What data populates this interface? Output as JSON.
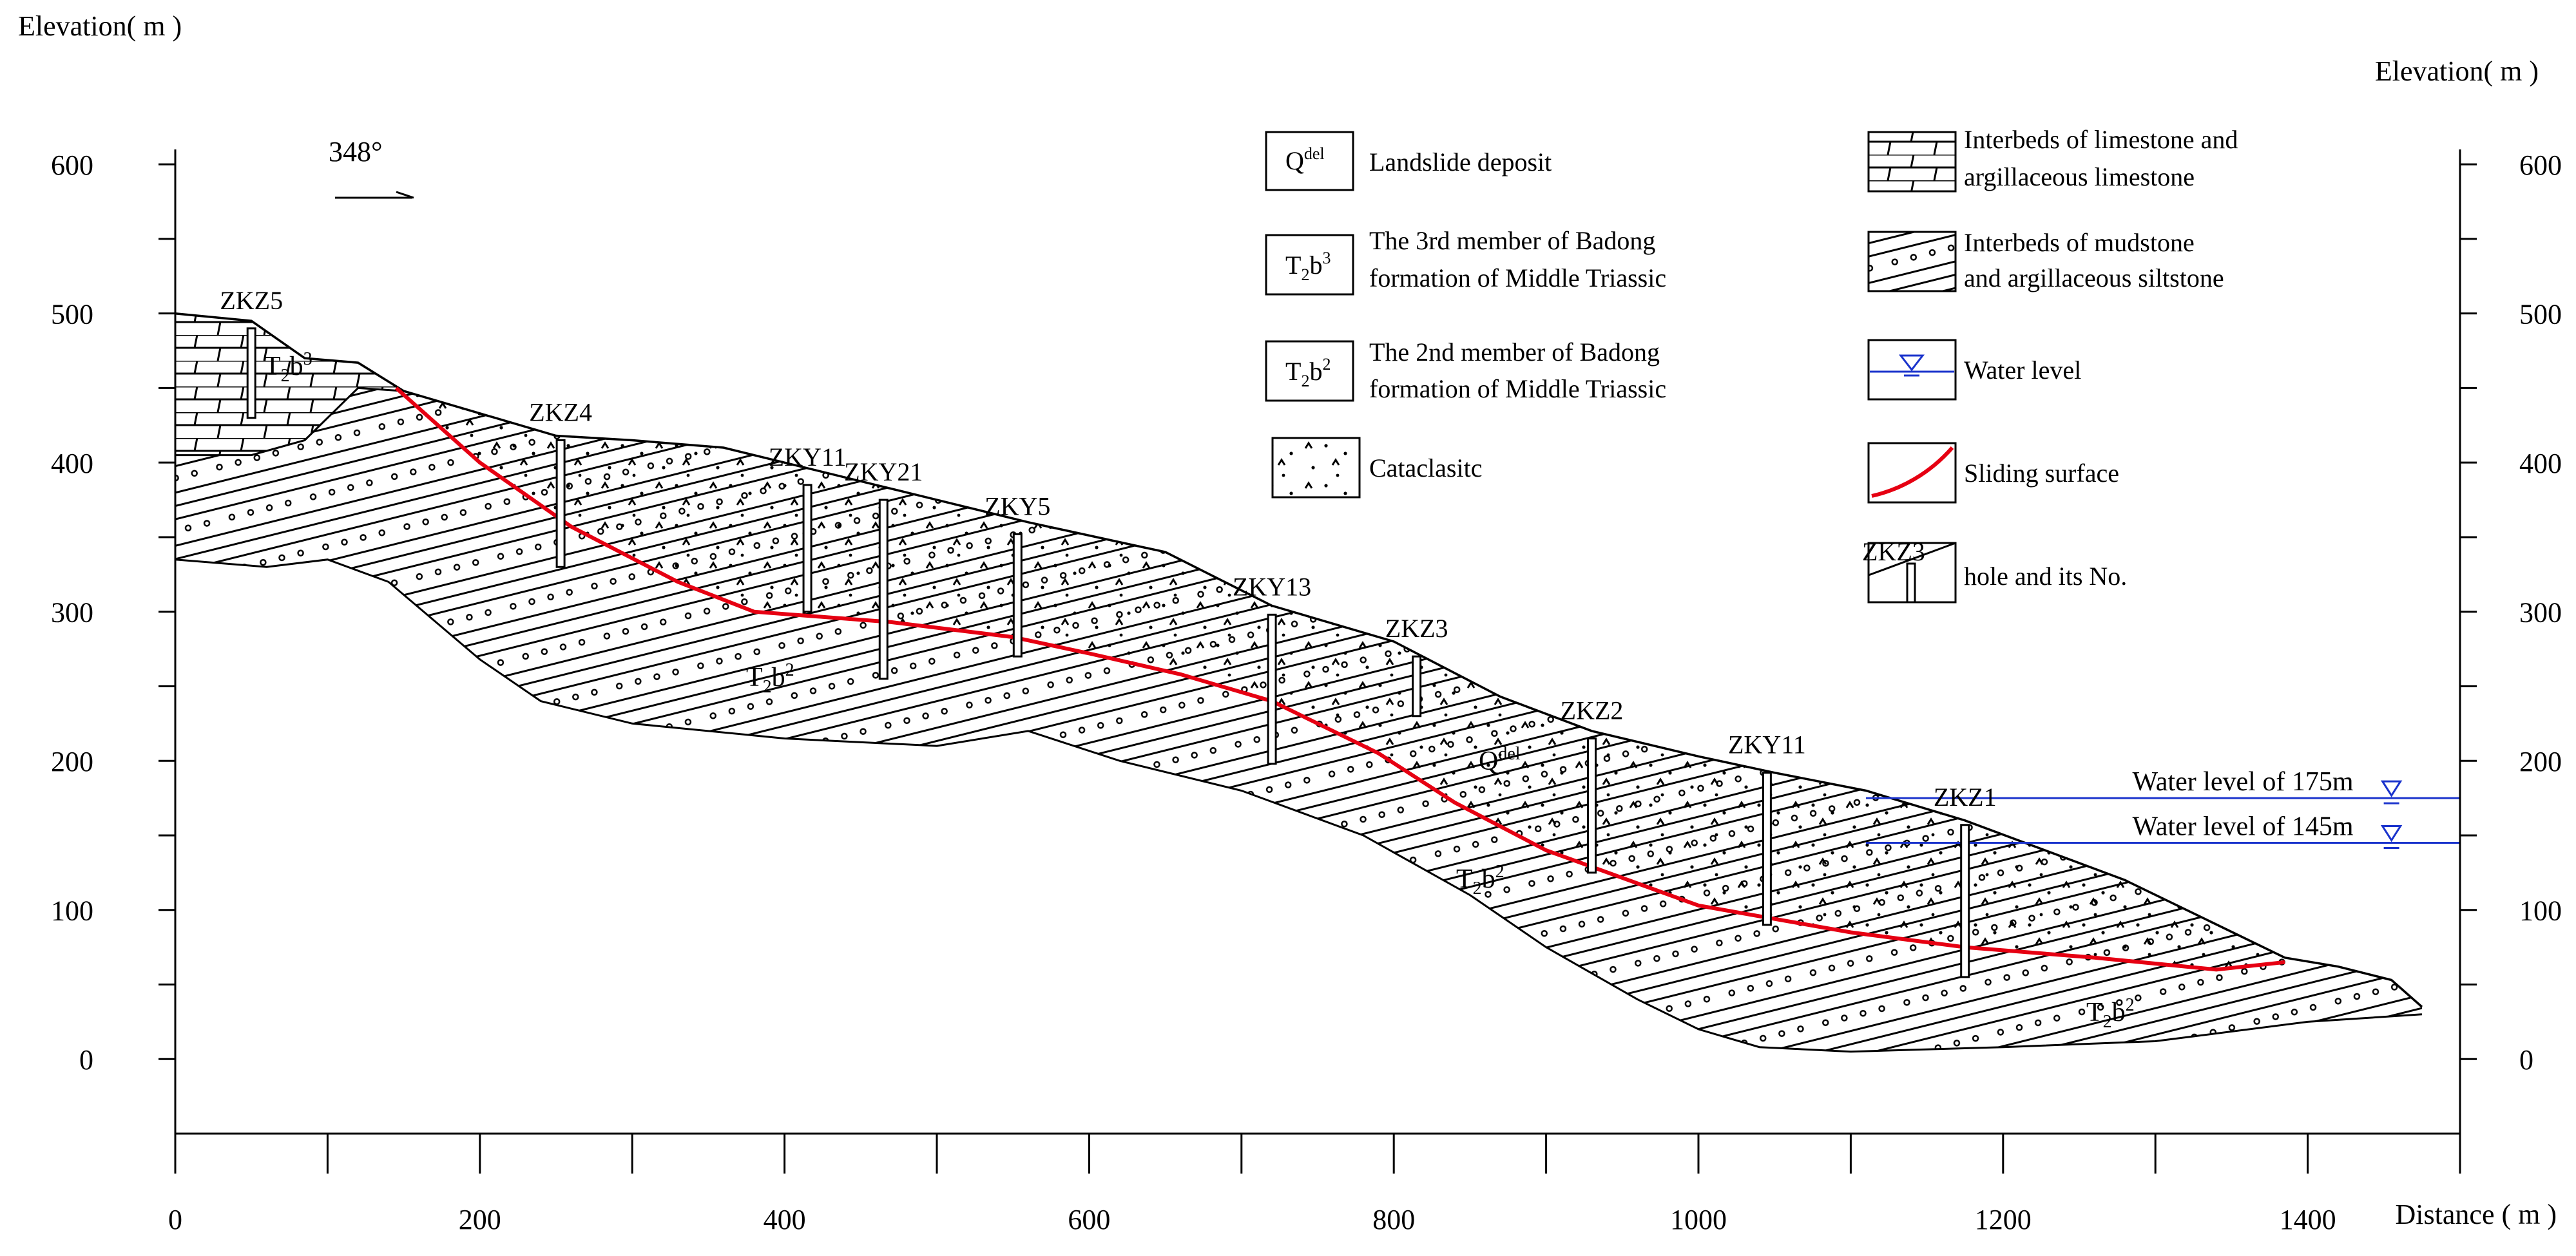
{
  "axes": {
    "left_title": "Elevation( m )",
    "right_title": "Elevation( m )",
    "x_title": "Distance ( m )",
    "y_ticks": [
      "0",
      "100",
      "200",
      "300",
      "400",
      "500",
      "600"
    ],
    "x_ticks": [
      "0",
      "200",
      "400",
      "600",
      "800",
      "1000",
      "1200",
      "1400"
    ],
    "x_range": [
      0,
      1500
    ],
    "y_range": [
      -50,
      610
    ]
  },
  "orientation": {
    "label": "348°"
  },
  "boreholes": [
    {
      "id": "ZKZ5",
      "label": "ZKZ5",
      "x": 50,
      "top": 490,
      "bottom": 430
    },
    {
      "id": "ZKZ4",
      "label": "ZKZ4",
      "x": 253,
      "top": 415,
      "bottom": 330
    },
    {
      "id": "ZKY11a",
      "label": "ZKY11",
      "x": 415,
      "top": 385,
      "bottom": 300
    },
    {
      "id": "ZKY21",
      "label": "ZKY21",
      "x": 465,
      "top": 375,
      "bottom": 255
    },
    {
      "id": "ZKY5",
      "label": "ZKY5",
      "x": 553,
      "top": 352,
      "bottom": 270
    },
    {
      "id": "ZKY13",
      "label": "ZKY13",
      "x": 720,
      "top": 298,
      "bottom": 198
    },
    {
      "id": "ZKZ3",
      "label": "ZKZ3",
      "x": 815,
      "top": 270,
      "bottom": 230
    },
    {
      "id": "ZKZ2",
      "label": "ZKZ2",
      "x": 930,
      "top": 215,
      "bottom": 125
    },
    {
      "id": "ZKY11b",
      "label": "ZKY11",
      "x": 1045,
      "top": 192,
      "bottom": 90
    },
    {
      "id": "ZKZ1",
      "label": "ZKZ1",
      "x": 1175,
      "top": 157,
      "bottom": 55
    }
  ],
  "formation_labels": {
    "t2b3_top": "T2b3",
    "t2b2_mid": "T2b2",
    "qdel": "Qdel",
    "t2b2_lower": "T2b2",
    "t2b2_right": "T2b2"
  },
  "water_levels": [
    {
      "label": "Water level of 175m",
      "elevation": 175
    },
    {
      "label": "Water level of 145m",
      "elevation": 145
    }
  ],
  "legend": {
    "items": [
      {
        "key": "qdel",
        "symbol": "Qdel",
        "text": [
          "Landslide deposit"
        ]
      },
      {
        "key": "t2b3",
        "symbol": "T2b3",
        "text": [
          "The 3rd member of Badong",
          "formation of Middle Triassic"
        ]
      },
      {
        "key": "t2b2",
        "symbol": "T2b2",
        "text": [
          "The 2nd member of Badong",
          "formation of Middle Triassic"
        ]
      },
      {
        "key": "cataclasite",
        "symbol": "",
        "text": [
          "Cataclasitc"
        ]
      },
      {
        "key": "limestone",
        "symbol": "",
        "text": [
          "Interbeds of limestone and",
          "argillaceous limestone"
        ]
      },
      {
        "key": "mudstone",
        "symbol": "",
        "text": [
          "Interbeds of mudstone",
          "and argillaceous siltstone"
        ]
      },
      {
        "key": "water",
        "symbol": "",
        "text": [
          "Water level"
        ]
      },
      {
        "key": "sliding",
        "symbol": "",
        "text": [
          "Sliding surface"
        ]
      },
      {
        "key": "hole",
        "symbol": "ZKZ3",
        "text": [
          "hole and its No."
        ]
      }
    ]
  },
  "profiles": {
    "ground": [
      [
        0,
        500
      ],
      [
        50,
        495
      ],
      [
        85,
        470
      ],
      [
        120,
        467
      ],
      [
        150,
        448
      ],
      [
        250,
        418
      ],
      [
        300,
        415
      ],
      [
        360,
        410
      ],
      [
        460,
        385
      ],
      [
        560,
        360
      ],
      [
        650,
        340
      ],
      [
        720,
        304
      ],
      [
        800,
        280
      ],
      [
        870,
        243
      ],
      [
        930,
        220
      ],
      [
        1000,
        203
      ],
      [
        1050,
        192
      ],
      [
        1110,
        180
      ],
      [
        1175,
        160
      ],
      [
        1280,
        120
      ],
      [
        1385,
        68
      ],
      [
        1420,
        62
      ],
      [
        1455,
        53
      ],
      [
        1475,
        35
      ]
    ],
    "sliding_surface": [
      [
        145,
        450
      ],
      [
        200,
        400
      ],
      [
        260,
        357
      ],
      [
        330,
        320
      ],
      [
        380,
        300
      ],
      [
        470,
        293
      ],
      [
        550,
        283
      ],
      [
        600,
        272
      ],
      [
        660,
        258
      ],
      [
        720,
        240
      ],
      [
        790,
        205
      ],
      [
        840,
        172
      ],
      [
        900,
        140
      ],
      [
        1000,
        103
      ],
      [
        1100,
        85
      ],
      [
        1175,
        75
      ],
      [
        1260,
        68
      ],
      [
        1340,
        60
      ],
      [
        1385,
        65
      ]
    ],
    "bottom": [
      [
        0,
        335
      ],
      [
        60,
        330
      ],
      [
        100,
        335
      ],
      [
        140,
        320
      ],
      [
        200,
        268
      ],
      [
        240,
        240
      ],
      [
        300,
        225
      ],
      [
        400,
        215
      ],
      [
        500,
        210
      ],
      [
        560,
        220
      ],
      [
        620,
        200
      ],
      [
        700,
        180
      ],
      [
        780,
        150
      ],
      [
        850,
        110
      ],
      [
        900,
        75
      ],
      [
        960,
        40
      ],
      [
        1000,
        20
      ],
      [
        1040,
        8
      ],
      [
        1100,
        5
      ],
      [
        1200,
        8
      ],
      [
        1300,
        12
      ],
      [
        1400,
        25
      ],
      [
        1475,
        30
      ]
    ],
    "t2b3_base": [
      [
        0,
        405
      ],
      [
        50,
        405
      ],
      [
        85,
        415
      ],
      [
        120,
        450
      ],
      [
        150,
        448
      ]
    ]
  }
}
